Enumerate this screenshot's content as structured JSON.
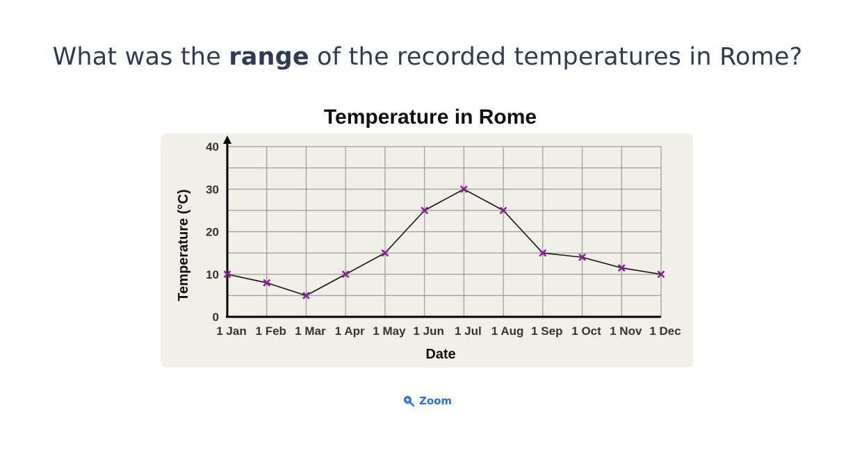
{
  "question": {
    "prefix": "What was the",
    "keyword": "range",
    "suffix": "of the recorded temperatures in Rome?"
  },
  "zoom": {
    "label": "Zoom",
    "icon": "zoom-in-icon",
    "color": "#2b6fd6"
  },
  "colors": {
    "marker": "#8b1f8f",
    "panel": "#f1efe8",
    "text": "#2f3b52"
  },
  "chart_data": {
    "type": "line",
    "title": "Temperature in Rome",
    "xlabel": "Date",
    "ylabel": "Temperature (°C)",
    "categories": [
      "1 Jan",
      "1 Feb",
      "1 Mar",
      "1 Apr",
      "1 May",
      "1 Jun",
      "1 Jul",
      "1 Aug",
      "1 Sep",
      "1 Oct",
      "1 Nov",
      "1 Dec"
    ],
    "values": [
      10,
      8,
      5,
      10,
      15,
      25,
      30,
      25,
      15,
      14,
      11.5,
      10
    ],
    "y_ticks": [
      "0",
      "10",
      "20",
      "30",
      "40"
    ],
    "ylim": [
      0,
      40
    ],
    "y_minor_step": 5,
    "grid": true,
    "marker": "x"
  }
}
